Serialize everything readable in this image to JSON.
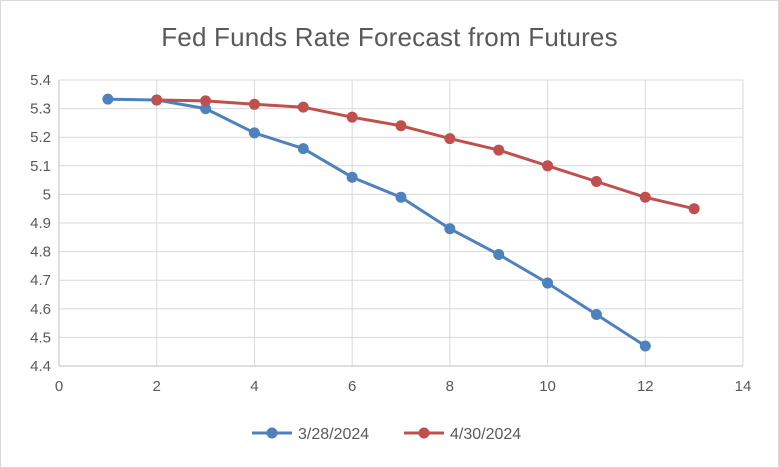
{
  "chart_data": {
    "type": "line",
    "title": "Fed Funds Rate Forecast from Futures",
    "xlabel": "",
    "ylabel": "",
    "xlim": [
      0,
      14
    ],
    "ylim": [
      4.4,
      5.4
    ],
    "x_ticks": [
      "0",
      "2",
      "4",
      "6",
      "8",
      "10",
      "12",
      "14"
    ],
    "y_ticks": [
      "4.4",
      "4.5",
      "4.6",
      "4.7",
      "4.8",
      "4.9",
      "5",
      "5.1",
      "5.2",
      "5.3",
      "5.4"
    ],
    "grid": true,
    "legend_position": "bottom",
    "series": [
      {
        "name": "3/28/2024",
        "color": "#4f81bd",
        "x": [
          1,
          2,
          3,
          4,
          5,
          6,
          7,
          8,
          9,
          10,
          11,
          12
        ],
        "y": [
          5.333,
          5.33,
          5.3,
          5.215,
          5.16,
          5.06,
          4.99,
          4.88,
          4.79,
          4.69,
          4.58,
          4.47
        ]
      },
      {
        "name": "4/30/2024",
        "color": "#c0504d",
        "x": [
          2,
          3,
          4,
          5,
          6,
          7,
          8,
          9,
          10,
          11,
          12,
          13
        ],
        "y": [
          5.33,
          5.327,
          5.315,
          5.305,
          5.27,
          5.24,
          5.195,
          5.155,
          5.1,
          5.045,
          4.99,
          4.95
        ]
      }
    ]
  }
}
